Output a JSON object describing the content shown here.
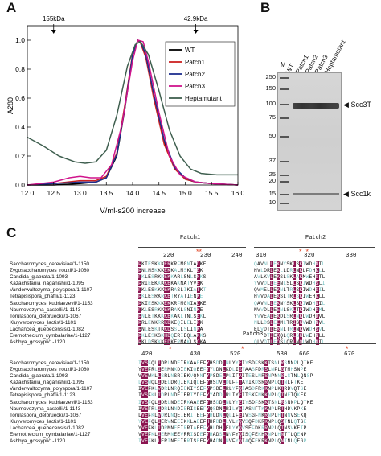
{
  "panels": {
    "a": "A",
    "b": "B",
    "c": "C"
  },
  "chart_data": {
    "type": "line",
    "xlabel": "V/ml-s200 increase",
    "ylabel": "A280",
    "xlim": [
      12.0,
      16.0
    ],
    "ylim": [
      0,
      1.1
    ],
    "xticks": [
      "12.0",
      "12.5",
      "13.0",
      "13.5",
      "14.0",
      "14.5",
      "15.0",
      "15.5",
      "16.0"
    ],
    "yticks": [
      "0.0",
      "0.2",
      "0.4",
      "0.6",
      "0.8",
      "1.0"
    ],
    "annotations": [
      {
        "label": "155kDa",
        "x": 12.5
      },
      {
        "label": "42.9kDa",
        "x": 15.2
      }
    ],
    "legend": "top-right",
    "series": [
      {
        "name": "WT",
        "color": "#000000",
        "x": [
          12.0,
          12.5,
          13.0,
          13.3,
          13.5,
          13.7,
          13.85,
          14.0,
          14.1,
          14.15,
          14.25,
          14.4,
          14.6,
          14.8,
          15.0,
          15.2,
          15.5,
          16.0
        ],
        "y": [
          0.0,
          0.0,
          0.01,
          0.02,
          0.05,
          0.2,
          0.52,
          0.9,
          1.0,
          0.99,
          0.9,
          0.62,
          0.3,
          0.12,
          0.04,
          0.02,
          0.01,
          0.0
        ]
      },
      {
        "name": "Patch1",
        "color": "#cc2222",
        "x": [
          12.0,
          12.5,
          13.0,
          13.3,
          13.5,
          13.7,
          13.85,
          14.0,
          14.1,
          14.15,
          14.25,
          14.4,
          14.6,
          14.8,
          15.0,
          15.2,
          15.5,
          16.0
        ],
        "y": [
          0.0,
          0.01,
          0.03,
          0.03,
          0.06,
          0.22,
          0.55,
          0.91,
          1.0,
          0.98,
          0.88,
          0.6,
          0.28,
          0.11,
          0.04,
          0.02,
          0.01,
          0.0
        ]
      },
      {
        "name": "Patch2",
        "color": "#1f2f8f",
        "x": [
          12.0,
          12.5,
          13.0,
          13.3,
          13.5,
          13.7,
          13.85,
          14.0,
          14.1,
          14.15,
          14.25,
          14.4,
          14.6,
          14.8,
          15.0,
          15.2,
          15.5,
          16.0
        ],
        "y": [
          0.0,
          0.01,
          0.02,
          0.02,
          0.05,
          0.21,
          0.53,
          0.9,
          1.0,
          0.99,
          0.9,
          0.63,
          0.31,
          0.12,
          0.05,
          0.02,
          0.01,
          0.0
        ]
      },
      {
        "name": "Patch3",
        "color": "#d0148c",
        "x": [
          12.0,
          12.5,
          12.8,
          13.0,
          13.2,
          13.4,
          13.6,
          13.8,
          14.0,
          14.1,
          14.2,
          14.3,
          14.5,
          14.7,
          14.9,
          15.2,
          15.5,
          16.0
        ],
        "y": [
          0.0,
          0.02,
          0.05,
          0.06,
          0.05,
          0.05,
          0.14,
          0.42,
          0.86,
          1.0,
          0.99,
          0.85,
          0.5,
          0.2,
          0.07,
          0.02,
          0.01,
          0.0
        ]
      },
      {
        "name": "Heptamutant",
        "color": "#3f5f4f",
        "x": [
          12.0,
          12.3,
          12.6,
          12.9,
          13.1,
          13.3,
          13.5,
          13.7,
          13.9,
          14.05,
          14.15,
          14.3,
          14.5,
          14.7,
          14.9,
          15.1,
          15.3,
          15.6,
          16.0
        ],
        "y": [
          0.33,
          0.27,
          0.2,
          0.16,
          0.15,
          0.16,
          0.24,
          0.48,
          0.82,
          0.97,
          0.99,
          0.9,
          0.65,
          0.38,
          0.2,
          0.11,
          0.08,
          0.07,
          0.07
        ]
      }
    ]
  },
  "gel": {
    "marker_label": "M",
    "lanes": [
      "WT",
      "Patch1",
      "Patch2",
      "Patch3",
      "Heptamutant"
    ],
    "markers": [
      "250",
      "150",
      "100",
      "75",
      "50",
      "37",
      "25",
      "20",
      "15",
      "10"
    ],
    "bands": [
      {
        "label": "Scc3T",
        "arrow": "◀"
      },
      {
        "label": "Scc1k",
        "arrow": "◀"
      }
    ]
  },
  "alignment": {
    "species": [
      "Saccharomyces_cerevisiae/1-1150",
      "Zygosaccharomyces_rouxii/1-1080",
      "Candida_glabrata/1-1093",
      "Kazachstania_naganishii/1-1095",
      "Vanderwaltozyma_polyspora/1-1107",
      "Tetrapisispora_phaffii/1-1123",
      "Saccharomyces_kudriavzevii/1-1153",
      "Naumovozyma_castellii/1-1143",
      "Torulaspora_delbrueckii/1-1067",
      "Kluyveromyces_lactis/1-1101",
      "Lachancea_quebecensis/1-1082",
      "Eremothecium_cymbalariae/1-1127",
      "Ashbya_gossypii/1-1120"
    ],
    "top": {
      "patch1": {
        "title": "Patch1",
        "positions": [
          "220",
          "230",
          "240"
        ],
        "stars": "**",
        "rows": [
          "FKIESKKKERKRFMGNIADKE",
          "FNLNSKKKEKKALMSKLTEK",
          "FKLESRKKEKKARLSNLSNKS",
          "FRIEEKKKKEKAKNATYVEK",
          "FKLESKKKEKRASLIKIATKT",
          "FKLESRKRKETRYATIENKE",
          "FKIESKKKEKKRFMGNIADKE",
          "FKLESRKKEKRAKLSNINKE",
          "FNLETKKKKEKAKLTNLSEKL",
          "FRLENKRRKDKEQILELIRK",
          "FNLESKTKKDSSLLSLINKA",
          "FKLESKSKHDQERIEQLAKKS",
          "FKLDSKKKEDKERMAKLSQKA"
        ]
      },
      "patch2": {
        "title": "Patch2",
        "positions": [
          "310",
          "320",
          "330"
        ],
        "stars": "*  *",
        "rows": [
          "QAVNLLEKNYSKLSKIWDHNIL",
          "HVLDRLEKLLDRLNKLFDHKLL",
          "AVLKVLEKSLSKLAKMWEHSTL",
          "YVVDLLEENLSLLSKIWDHSLI",
          "QVMELLEKNLTRLSKIWDHSIL",
          "HVVDALEKSLTRLSKIWEHKLL",
          "QAVNLLEKNYSKLSKIWDHNIL",
          "NVVDLLEENLSKLTKIWDHSML",
          "YVVEALEKDLSRLNKLWDHDVL",
          "NLLDSLEEMLTRISKVWDHNVL",
          "ELVDTLERNLTRLNKVWDHSVL",
          "RLMDTIEQQLQRLSKLWEHNLL",
          "QLVDTLEQSLQRLNQLWDHNIL"
        ]
      }
    },
    "bottom": {
      "patch3": {
        "title": "Patch3",
        "positions": [
          "420",
          "430",
          "520",
          "530",
          "660",
          "670"
        ],
        "stars": "*  *  *",
        "rows": [
          "IVSFQLIDRLNDEIRKAAEEFYHSDDLNLYYEIYSDFSKKTSNLRSNNPLQTKE",
          "YVEFRLIERMNKDIEKIQEEFYYLDNLKDLISTAASFDRSLNPLGTMHSNPE",
          "VVEWKLLSRLNSRIEKVQNNFYPSDELPLIFAITESLNRSNPNNSLSTNLQNSP",
          "LVSWQLIDELDRQIEKIQDEFYHSDVLDLFFTAYIKDSRRNPLQTNLFTKE",
          "IVEFKLVDRLNRQIEKIYSEFYPSDELRLYFQIASDFRKKNPLKTRDVQTSE",
          "IVSFKLIDRLNDEIERIYDEFYYADDLRLIYEITSKFNKKNPLQTNETQKEK",
          "IVSFQLIDRLNDEIRKAAEEFYHSDDLNLYYEIYSDFSKKTSNLRSNNPLQTKE",
          "IVEFRLIDRLNNDIERISEEFYQSDNLRILYEIASNFTKKNPLRTHDVKPKE",
          "LVEFKLVDRLNQEIERITEEFYHLDNLQLIFEIVSGFNKRNPLHTNNVSEKQ",
          "YVEFQLIERVNEEIKKLAEEFHHFDDLLVLYQVSQFDKRKNPLQSTNLQTSE",
          "YVEFKLIDRMNEEIRRIAEEFYHLDHLELYYQVSEFDKRRNPLQTNSVKETP",
          "VVEFKLIERMNEEVRRISDEFYHADSLNVFYQISQFEKHKNPLHNTTLQENP",
          "IVEFKLLERINEEIRRISEEFYHADNLNVFYQIAQFEKRKNPLQNTNLQEGP"
        ]
      }
    }
  },
  "colors": {
    "conserved_bg": "#8a1450",
    "similar_text": "#6fbfbf",
    "star": "#e04020"
  }
}
